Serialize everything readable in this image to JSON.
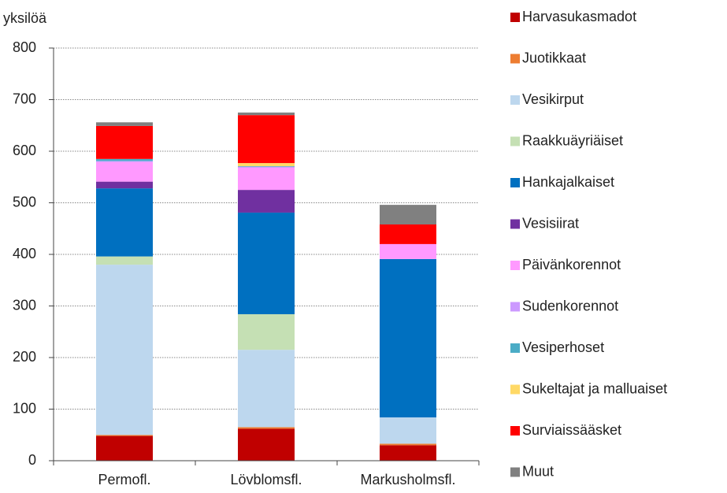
{
  "chart_data": {
    "type": "stacked_bar",
    "y_label": "yksilöä",
    "categories": [
      "Permofl.",
      "Lövblomsfl.",
      "Markusholmsfl."
    ],
    "series": [
      {
        "name": "Harvasukasmadot",
        "color": "#c00000",
        "values": [
          48,
          62,
          30
        ]
      },
      {
        "name": "Juotikkaat",
        "color": "#ed7d31",
        "values": [
          2,
          3,
          3
        ]
      },
      {
        "name": "Vesikirput",
        "color": "#bdd7ee",
        "values": [
          330,
          150,
          51
        ]
      },
      {
        "name": "Raakkuäyriäiset",
        "color": "#c5e0b4",
        "values": [
          16,
          69,
          0
        ]
      },
      {
        "name": "Hankajalkaiset",
        "color": "#0070c0",
        "values": [
          132,
          197,
          307
        ]
      },
      {
        "name": "Vesisiirat",
        "color": "#7030a0",
        "values": [
          13,
          44,
          0
        ]
      },
      {
        "name": "Päivänkorennot",
        "color": "#ff99ff",
        "values": [
          38,
          43,
          29
        ]
      },
      {
        "name": "Sudenkorennot",
        "color": "#cc99ff",
        "values": [
          2,
          2,
          0
        ]
      },
      {
        "name": "Vesiperhoset",
        "color": "#4bacc6",
        "values": [
          4,
          1,
          0
        ]
      },
      {
        "name": "Sukeltajat ja malluaiset",
        "color": "#ffd966",
        "values": [
          0,
          6,
          0
        ]
      },
      {
        "name": "Surviaissääsket",
        "color": "#ff0000",
        "values": [
          64,
          93,
          38
        ]
      },
      {
        "name": "Muut",
        "color": "#808080",
        "values": [
          7,
          5,
          38
        ]
      }
    ],
    "ylim": [
      0,
      800
    ],
    "yticks": [
      0,
      100,
      200,
      300,
      400,
      500,
      600,
      700,
      800
    ],
    "grid": true,
    "legend": "right"
  }
}
